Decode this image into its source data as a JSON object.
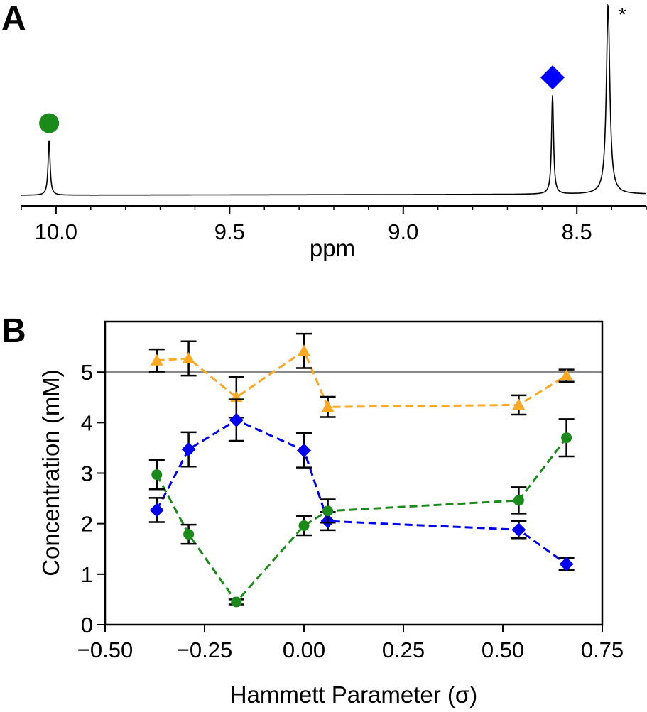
{
  "chart_data": [
    {
      "panel": "A",
      "type": "line",
      "xlabel": "ppm",
      "ylabel": "",
      "x_reversed": true,
      "xlim": [
        10.1,
        8.3
      ],
      "xticks": [
        "10.0",
        "9.5",
        "9.0",
        "8.5"
      ],
      "xtick_values": [
        10.0,
        9.5,
        9.0,
        8.5
      ],
      "peaks": [
        {
          "ppm": 10.02,
          "height": 0.29,
          "marker": "circle",
          "color": "#1a8a1a"
        },
        {
          "ppm": 8.57,
          "height": 0.52,
          "marker": "diamond",
          "color": "#0000ff"
        },
        {
          "ppm": 8.41,
          "height": 1.0,
          "marker": "*",
          "color": "#000000"
        }
      ],
      "annotation": "*"
    },
    {
      "panel": "B",
      "type": "line",
      "xlabel": "Hammett Parameter (σ)",
      "ylabel": "Concentration (mM)",
      "xlim": [
        -0.5,
        0.75
      ],
      "ylim": [
        0,
        6
      ],
      "xticks": [
        "−0.50",
        "−0.25",
        "0.00",
        "0.25",
        "0.50",
        "0.75"
      ],
      "xtick_values": [
        -0.5,
        -0.25,
        0.0,
        0.25,
        0.5,
        0.75
      ],
      "yticks": [
        "0",
        "1",
        "2",
        "3",
        "4",
        "5"
      ],
      "ytick_values": [
        0,
        1,
        2,
        3,
        4,
        5
      ],
      "reference_line": {
        "y": 5,
        "color": "#888888"
      },
      "x": [
        -0.37,
        -0.29,
        -0.17,
        0.0,
        0.06,
        0.54,
        0.66
      ],
      "series": [
        {
          "marker": "triangle",
          "color": "#ffa824",
          "values": [
            5.23,
            5.27,
            4.5,
            5.42,
            4.31,
            4.35,
            4.93
          ],
          "errors": [
            0.22,
            0.34,
            0.4,
            0.34,
            0.2,
            0.19,
            0.12
          ]
        },
        {
          "marker": "diamond",
          "color": "#0000ee",
          "values": [
            2.27,
            3.47,
            4.05,
            3.45,
            2.05,
            1.88,
            1.2
          ],
          "errors": [
            0.24,
            0.34,
            0.41,
            0.34,
            0.18,
            0.17,
            0.12
          ]
        },
        {
          "marker": "circle",
          "color": "#1a8a1a",
          "values": [
            2.97,
            1.79,
            0.45,
            1.96,
            2.25,
            2.46,
            3.7
          ],
          "errors": [
            0.29,
            0.19,
            0.05,
            0.19,
            0.23,
            0.26,
            0.37
          ]
        }
      ]
    }
  ]
}
